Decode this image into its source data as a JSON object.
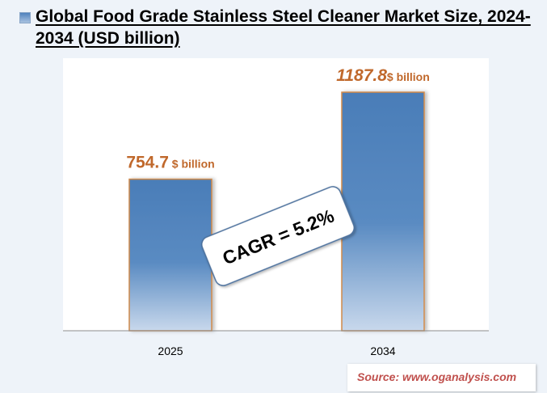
{
  "title": {
    "line1": "Global Food Grade Stainless Steel Cleaner Market Size, 2024-",
    "line2": "2034 (USD billion)"
  },
  "chart_data": {
    "type": "bar",
    "categories": [
      "2025",
      "2034"
    ],
    "values": [
      754.7,
      1187.8
    ],
    "value_labels": [
      "754.7",
      "1187.8"
    ],
    "unit_labels": [
      "$ billion",
      "$ billion"
    ],
    "ylim": [
      0,
      1200
    ],
    "grid": false,
    "legend": "none",
    "annotation": "CAGR = 5.2%",
    "bar_color": "#4f81bd",
    "bar_fade_color": "#c5d5ea",
    "label_color": "#c0682b"
  },
  "source": {
    "text": "Source: www.oganalysis.com"
  }
}
